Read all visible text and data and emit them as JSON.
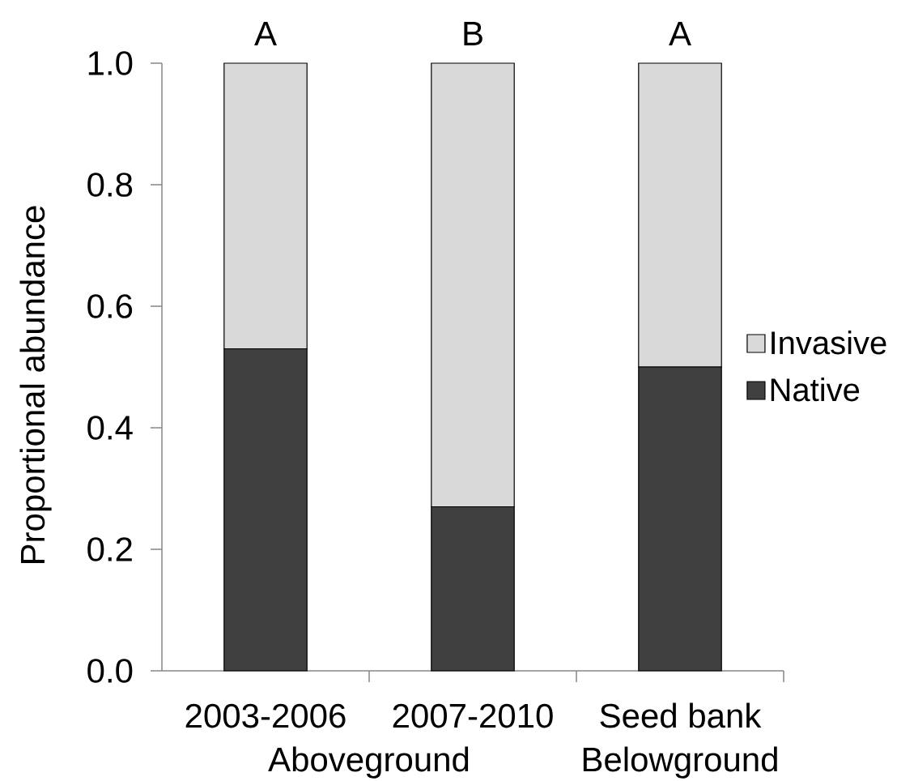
{
  "chart_data": {
    "type": "bar",
    "stacked": true,
    "ylabel": "Proportional abundance",
    "categories": [
      "2003-2006",
      "2007-2010",
      "Seed bank"
    ],
    "series": [
      {
        "name": "Native",
        "color": "#404040",
        "values": [
          0.53,
          0.27,
          0.5
        ]
      },
      {
        "name": "Invasive",
        "color": "#d9d9d9",
        "values": [
          0.47,
          0.73,
          0.5
        ]
      }
    ],
    "ylim": [
      0,
      1
    ],
    "yticks": [
      {
        "value": 0,
        "label": "0.0"
      },
      0.2,
      0.4,
      0.6,
      0.8,
      {
        "value": 1,
        "label": "1.0"
      }
    ],
    "legend": "right",
    "annotations": [
      {
        "text": "A",
        "x": "2003-2006",
        "y": 1
      },
      {
        "text": "B",
        "x": "2007-2010",
        "y": 1
      },
      {
        "text": "A",
        "x": "Seed bank",
        "y": 1
      },
      "Aboveground",
      "Belowground"
    ]
  }
}
